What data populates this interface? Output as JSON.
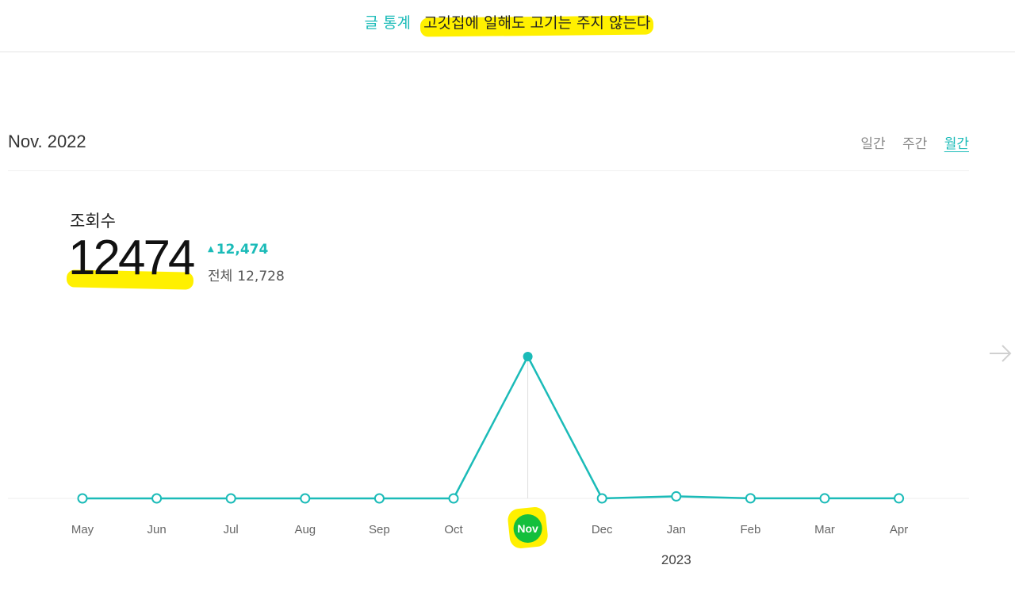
{
  "header": {
    "label": "글 통계",
    "title": "고깃집에 일해도 고기는 주지 않는다"
  },
  "period_title": "Nov. 2022",
  "period_tabs": [
    {
      "label": "일간",
      "active": false
    },
    {
      "label": "주간",
      "active": false
    },
    {
      "label": "월간",
      "active": true
    }
  ],
  "metric": {
    "label": "조회수",
    "value": "12474",
    "delta": "12,474",
    "total_label": "전체",
    "total_value": "12,728"
  },
  "colors": {
    "accent": "#1bbbb8",
    "highlight": "#fff000",
    "active_badge": "#14bf3c"
  },
  "icons": {
    "next": "arrow-right-icon"
  },
  "chart_data": {
    "type": "line",
    "categories": [
      "May",
      "Jun",
      "Jul",
      "Aug",
      "Sep",
      "Oct",
      "Nov",
      "Dec",
      "Jan",
      "Feb",
      "Mar",
      "Apr"
    ],
    "series": [
      {
        "values": [
          0,
          0,
          0,
          0,
          0,
          0,
          12474,
          0,
          180,
          10,
          5,
          5
        ]
      }
    ],
    "selected_index": 6,
    "year_marker": {
      "index": 8,
      "label": "2023"
    },
    "ylim": [
      0,
      12474
    ],
    "grid": false,
    "title": "",
    "xlabel": "",
    "ylabel": ""
  }
}
